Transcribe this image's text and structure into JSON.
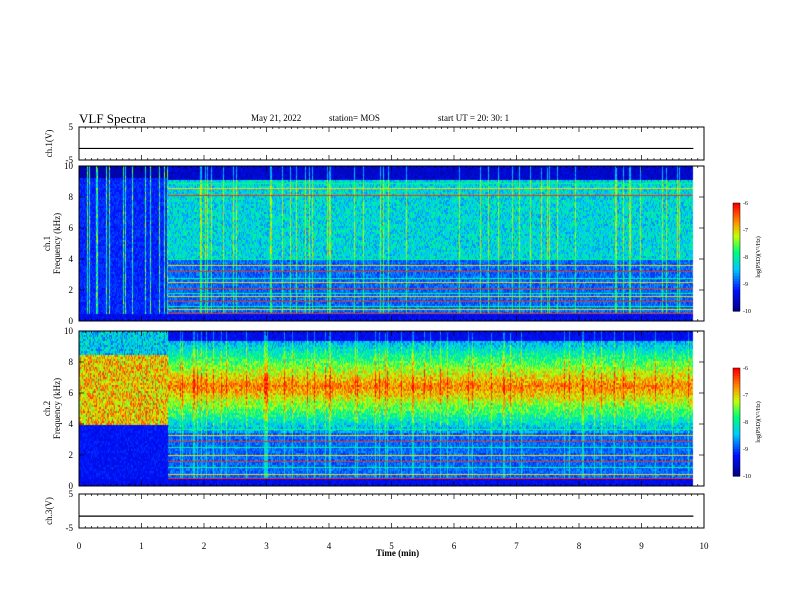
{
  "header": {
    "title": "VLF Spectra",
    "date": "May 21, 2022",
    "station": "station= MOS",
    "start_ut": "start  UT =   20: 30: 1"
  },
  "colormap": [
    "#00007a",
    "#0000ff",
    "#00c8ff",
    "#00ff80",
    "#ffff00",
    "#ff8000",
    "#ff0000",
    "#ffffff"
  ],
  "chart_data": [
    {
      "id": "ch1-voltage",
      "type": "line",
      "ylabel": "ch.1(V)",
      "ylim": [
        -5,
        5
      ],
      "yticks": [
        "5",
        "-5"
      ],
      "series": [
        {
          "x": [
            0,
            9.83
          ],
          "y": [
            -1.5,
            -1.5
          ]
        }
      ]
    },
    {
      "id": "ch1-spectrogram",
      "type": "heatmap",
      "ylabel": "ch.1 Frequency (kHz)",
      "ylim": [
        0,
        10
      ],
      "yticks": [
        "0",
        "2",
        "4",
        "6",
        "8",
        "10"
      ],
      "colorbar": {
        "label": "log(PSD)(V²/Hz)",
        "range": [
          -10,
          -6
        ],
        "ticks": [
          "-6",
          "-7",
          "-8",
          "-9",
          "-10"
        ]
      }
    },
    {
      "id": "ch2-spectrogram",
      "type": "heatmap",
      "ylabel": "ch.2 Frequency (kHz)",
      "ylim": [
        0,
        10
      ],
      "yticks": [
        "0",
        "2",
        "4",
        "6",
        "8",
        "10"
      ],
      "colorbar": {
        "label": "log(PSD)(V²/Hz)",
        "range": [
          -10,
          -6
        ],
        "ticks": [
          "-6",
          "-7",
          "-8",
          "-9",
          "-10"
        ]
      }
    },
    {
      "id": "ch3-voltage",
      "type": "line",
      "ylabel": "ch.3(V)",
      "ylim": [
        -5,
        5
      ],
      "yticks": [
        "5",
        "-5"
      ],
      "series": [
        {
          "x": [
            0,
            9.83
          ],
          "y": [
            -1.5,
            -1.5
          ]
        }
      ]
    }
  ],
  "time_axis": {
    "xlabel": "Time  (min)",
    "xlim": [
      0,
      10
    ],
    "ticks": [
      "0",
      "1",
      "2",
      "3",
      "4",
      "5",
      "6",
      "7",
      "8",
      "9",
      "10"
    ]
  }
}
